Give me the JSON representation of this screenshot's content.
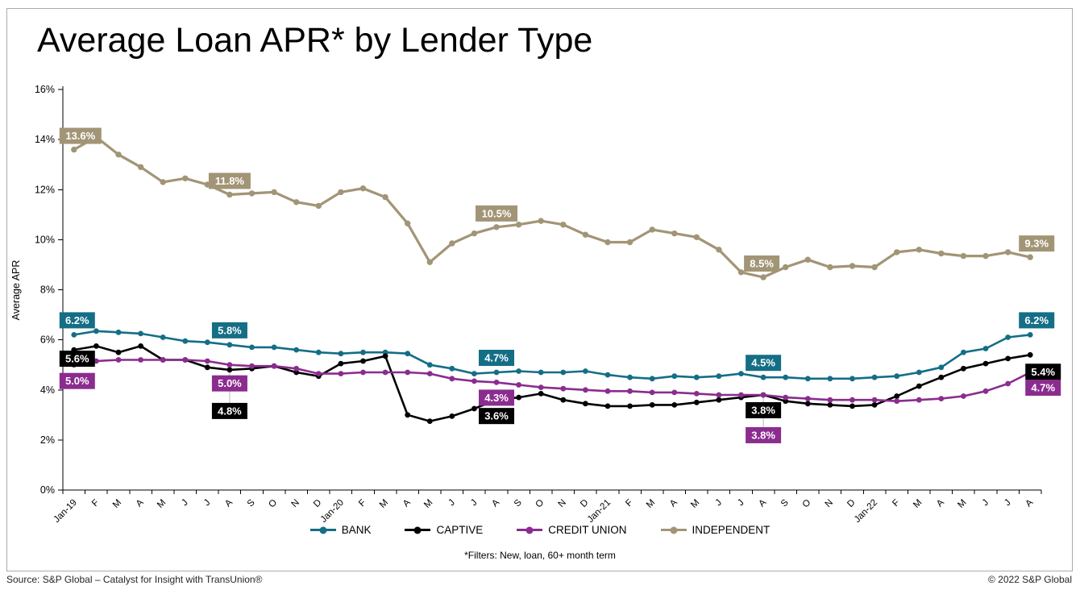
{
  "chart": {
    "footnote": "*Filters: New, loan, 60+ month term",
    "y_axis_title": "Average APR",
    "y_ticks": [
      {
        "v": 0,
        "label": "0%"
      },
      {
        "v": 2,
        "label": "2%"
      },
      {
        "v": 4,
        "label": "4%"
      },
      {
        "v": 6,
        "label": "6%"
      },
      {
        "v": 8,
        "label": "8%"
      },
      {
        "v": 10,
        "label": "10%"
      },
      {
        "v": 12,
        "label": "12%"
      },
      {
        "v": 14,
        "label": "14%"
      },
      {
        "v": 16,
        "label": "16%"
      }
    ]
  },
  "chart_data": {
    "type": "line",
    "title": "Average Loan APR* by Lender Type",
    "xlabel": "",
    "ylabel": "Average APR",
    "ylim": [
      0,
      16
    ],
    "legend_position": "bottom",
    "grid": false,
    "x": [
      "Jan-19",
      "F",
      "M",
      "A",
      "M",
      "J",
      "J",
      "A",
      "S",
      "O",
      "N",
      "D",
      "Jan-20",
      "F",
      "M",
      "A",
      "M",
      "J",
      "J",
      "A",
      "S",
      "O",
      "N",
      "D",
      "Jan-21",
      "F",
      "M",
      "A",
      "M",
      "J",
      "J",
      "A",
      "S",
      "O",
      "N",
      "D",
      "Jan-22",
      "F",
      "M",
      "A",
      "M",
      "J",
      "J",
      "A"
    ],
    "series": [
      {
        "name": "BANK",
        "color": "#146E86",
        "values": [
          6.2,
          6.35,
          6.3,
          6.25,
          6.1,
          5.95,
          5.9,
          5.8,
          5.7,
          5.7,
          5.6,
          5.5,
          5.45,
          5.5,
          5.5,
          5.45,
          5.0,
          4.85,
          4.65,
          4.7,
          4.75,
          4.7,
          4.7,
          4.75,
          4.6,
          4.5,
          4.45,
          4.55,
          4.5,
          4.55,
          4.65,
          4.5,
          4.5,
          4.45,
          4.45,
          4.45,
          4.5,
          4.55,
          4.7,
          4.9,
          5.5,
          5.65,
          6.1,
          6.2
        ],
        "labels": [
          {
            "i": 0,
            "t": "6.2%",
            "dx": 4,
            "dy": -18
          },
          {
            "i": 7,
            "t": "5.8%",
            "dx": 0,
            "dy": -18
          },
          {
            "i": 19,
            "t": "4.7%",
            "dx": 0,
            "dy": -18
          },
          {
            "i": 31,
            "t": "4.5%",
            "dx": 0,
            "dy": -18
          },
          {
            "i": 43,
            "t": "6.2%",
            "dx": 8,
            "dy": -18
          }
        ]
      },
      {
        "name": "CAPTIVE",
        "color": "#000000",
        "values": [
          5.6,
          5.75,
          5.5,
          5.75,
          5.2,
          5.2,
          4.9,
          4.8,
          4.85,
          4.95,
          4.7,
          4.55,
          5.05,
          5.15,
          5.35,
          3.0,
          2.75,
          2.95,
          3.25,
          3.6,
          3.7,
          3.85,
          3.6,
          3.45,
          3.35,
          3.35,
          3.4,
          3.4,
          3.5,
          3.6,
          3.7,
          3.8,
          3.55,
          3.45,
          3.4,
          3.35,
          3.4,
          3.75,
          4.15,
          4.5,
          4.85,
          5.05,
          5.25,
          5.4
        ],
        "labels": [
          {
            "i": 0,
            "t": "5.6%",
            "dx": 4,
            "dy": 11
          },
          {
            "i": 7,
            "t": "4.8%",
            "dx": 0,
            "dy": 51,
            "leader": true
          },
          {
            "i": 19,
            "t": "3.6%",
            "dx": 0,
            "dy": 20
          },
          {
            "i": 31,
            "t": "3.8%",
            "dx": 0,
            "dy": 19
          },
          {
            "i": 43,
            "t": "5.4%",
            "dx": 16,
            "dy": 21
          }
        ]
      },
      {
        "name": "CREDIT UNION",
        "color": "#8B2C8F",
        "values": [
          5.0,
          5.15,
          5.2,
          5.2,
          5.2,
          5.2,
          5.15,
          5.0,
          4.95,
          4.95,
          4.85,
          4.65,
          4.65,
          4.7,
          4.7,
          4.7,
          4.65,
          4.45,
          4.35,
          4.3,
          4.2,
          4.1,
          4.05,
          4.0,
          3.95,
          3.95,
          3.9,
          3.9,
          3.85,
          3.8,
          3.8,
          3.8,
          3.7,
          3.65,
          3.6,
          3.6,
          3.6,
          3.55,
          3.6,
          3.65,
          3.75,
          3.95,
          4.25,
          4.7
        ],
        "labels": [
          {
            "i": 0,
            "t": "5.0%",
            "dx": 4,
            "dy": 20
          },
          {
            "i": 7,
            "t": "5.0%",
            "dx": 0,
            "dy": 23
          },
          {
            "i": 19,
            "t": "4.3%",
            "dx": 0,
            "dy": 19
          },
          {
            "i": 31,
            "t": "3.8%",
            "dx": 0,
            "dy": 50,
            "leader": true
          },
          {
            "i": 43,
            "t": "4.7%",
            "dx": 16,
            "dy": 19
          }
        ]
      },
      {
        "name": "INDEPENDENT",
        "color": "#A29576",
        "values": [
          13.6,
          14.1,
          13.4,
          12.9,
          12.3,
          12.45,
          12.2,
          11.8,
          11.85,
          11.9,
          11.5,
          11.35,
          11.9,
          12.05,
          11.7,
          10.65,
          9.1,
          9.85,
          10.25,
          10.5,
          10.6,
          10.75,
          10.6,
          10.2,
          9.9,
          9.9,
          10.4,
          10.25,
          10.1,
          9.6,
          8.7,
          8.5,
          8.9,
          9.2,
          8.9,
          8.95,
          8.9,
          9.5,
          9.6,
          9.45,
          9.35,
          9.35,
          9.5,
          9.3
        ],
        "labels": [
          {
            "i": 0,
            "t": "13.6%",
            "dx": 8,
            "dy": -17
          },
          {
            "i": 7,
            "t": "11.8%",
            "dx": 0,
            "dy": -17
          },
          {
            "i": 19,
            "t": "10.5%",
            "dx": 0,
            "dy": -17
          },
          {
            "i": 31,
            "t": "8.5%",
            "dx": -2,
            "dy": -17
          },
          {
            "i": 43,
            "t": "9.3%",
            "dx": 8,
            "dy": -17
          }
        ]
      }
    ]
  },
  "footer": {
    "source": "Source: S&P Global – Catalyst for Insight with TransUnion®",
    "copyright": "© 2022 S&P Global"
  }
}
